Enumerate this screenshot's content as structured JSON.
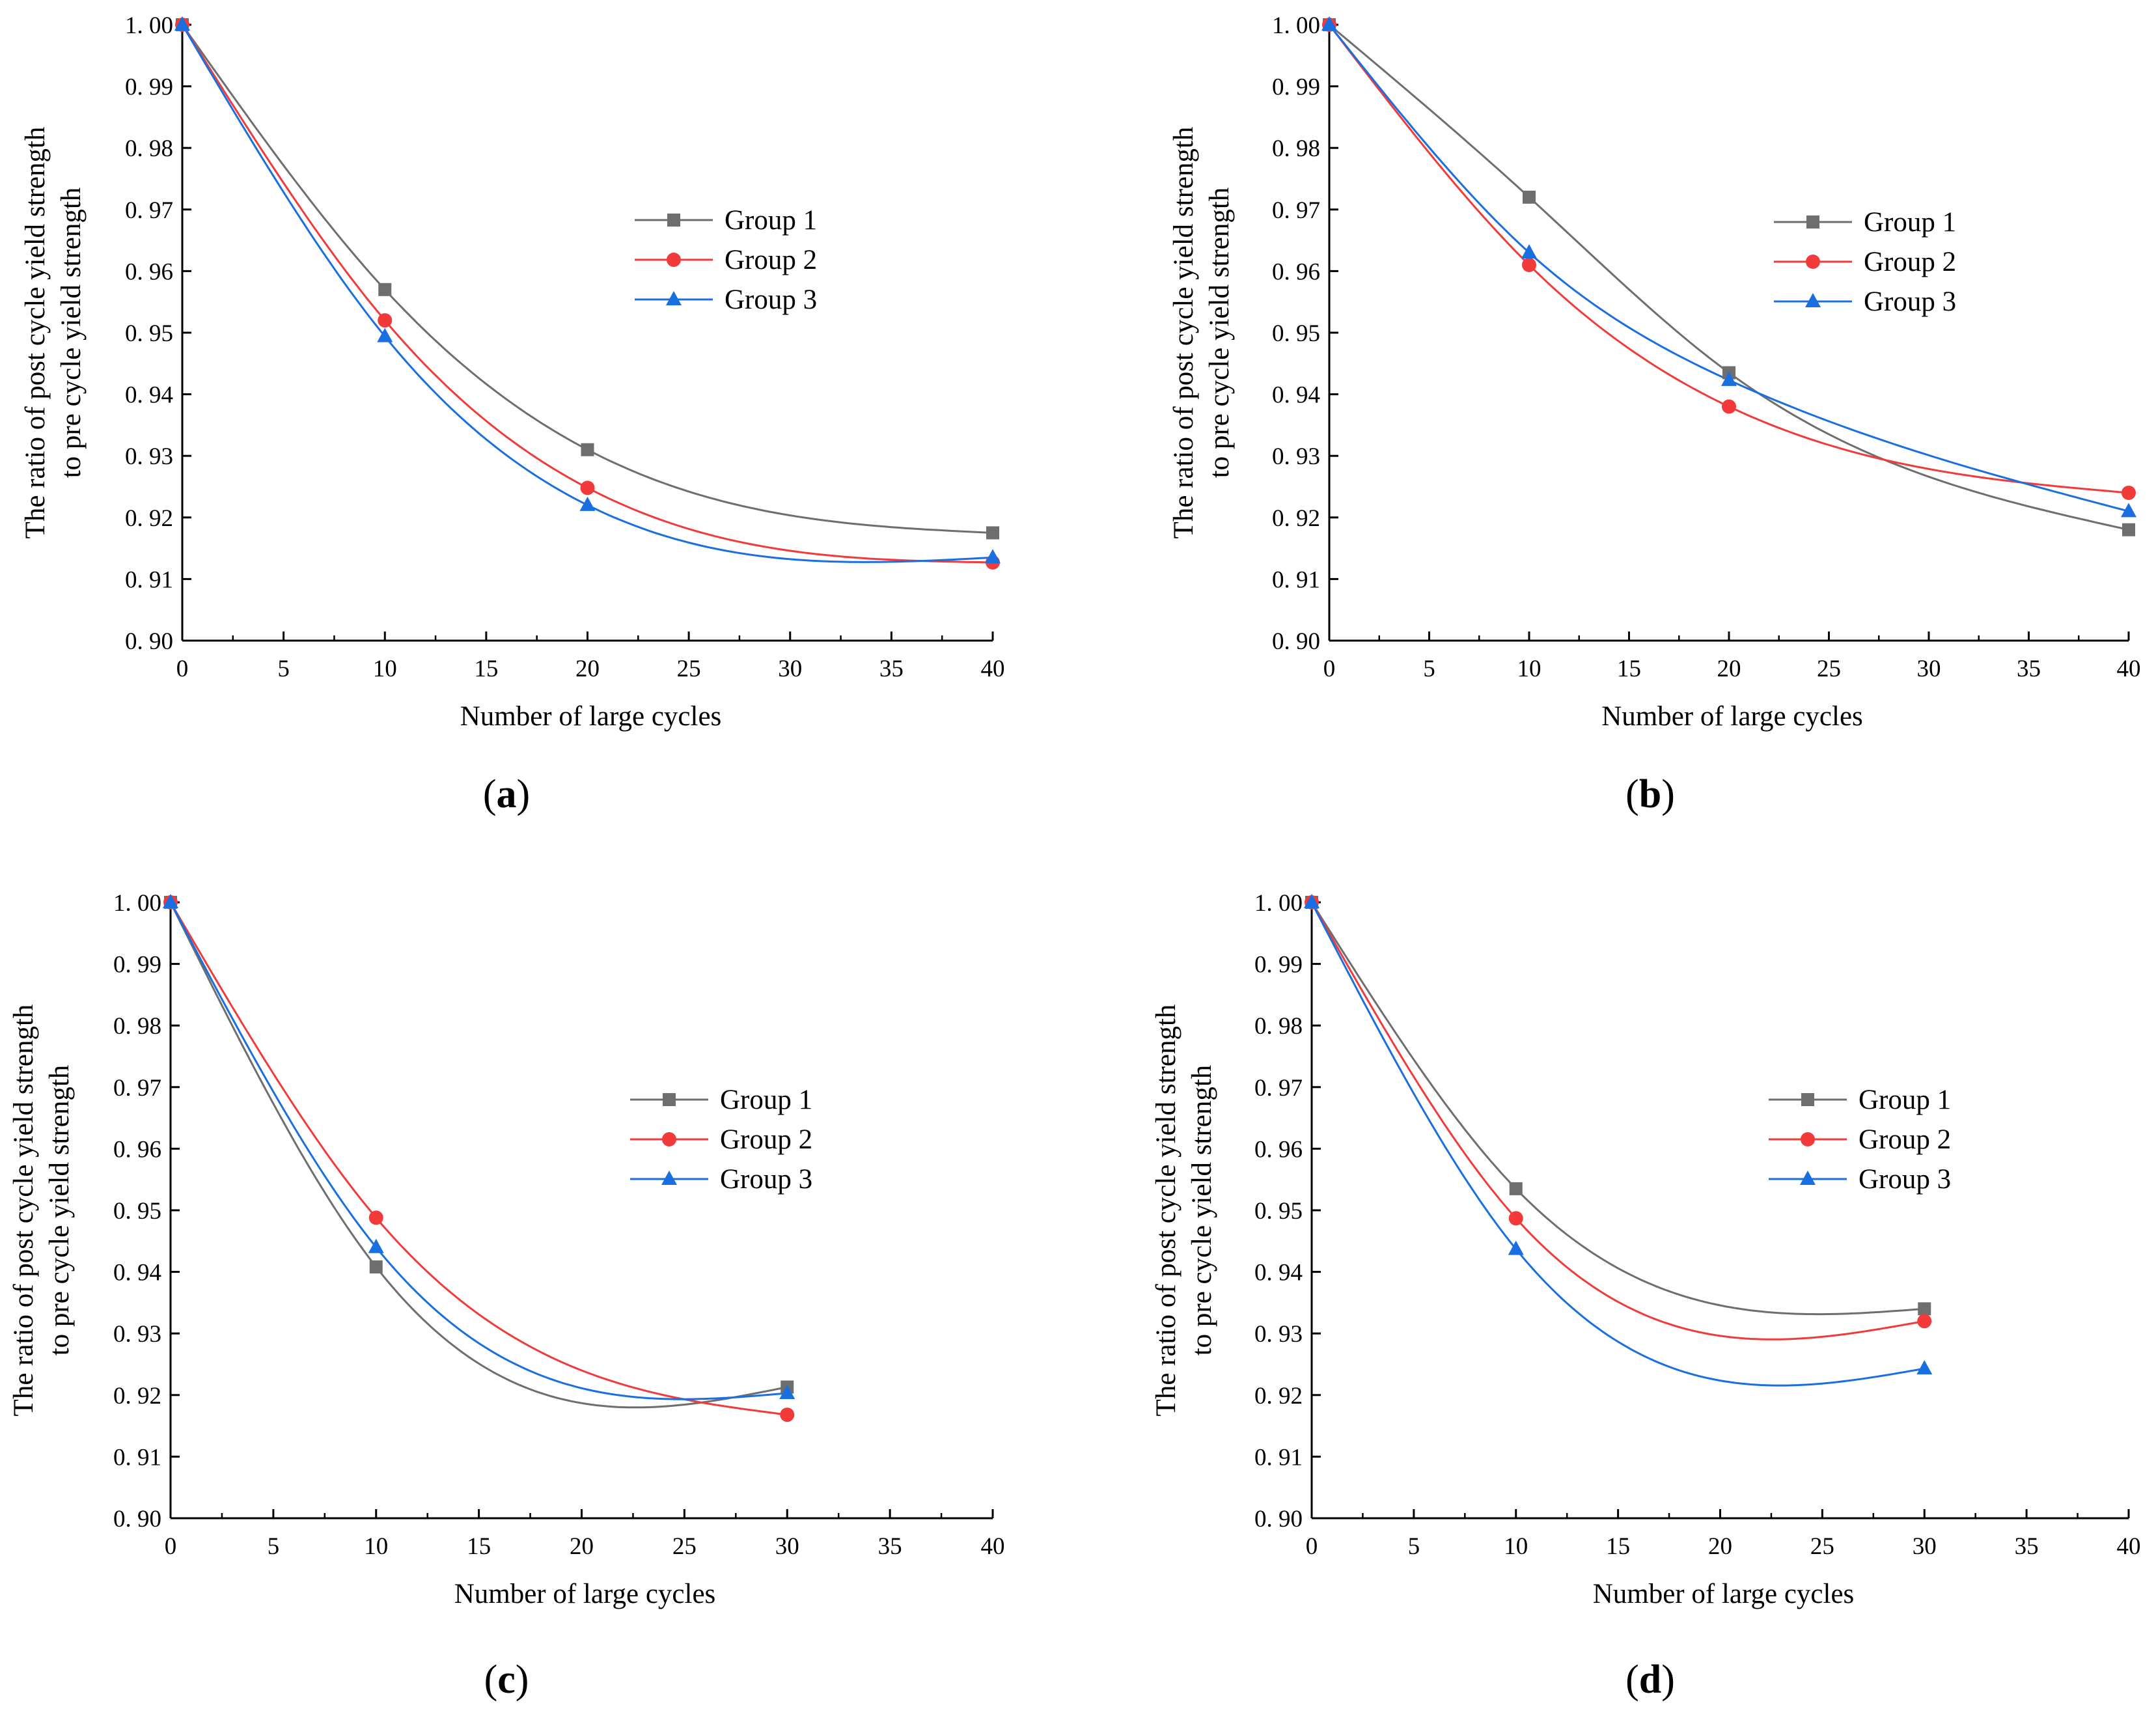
{
  "chart_data": [
    {
      "type": "line",
      "panel_label": "a",
      "xlabel": "Number of large cycles",
      "ylabel_line1": "The ratio of post cycle yield strength",
      "ylabel_line2": "to pre cycle yield strength",
      "xlim": [
        0,
        40
      ],
      "ylim": [
        0.9,
        1.0
      ],
      "xticks": [
        0,
        5,
        10,
        15,
        20,
        25,
        30,
        35,
        40
      ],
      "xtick_labels": [
        "0",
        "5",
        "10",
        "15",
        "20",
        "25",
        "30",
        "35",
        "40"
      ],
      "yticks": [
        0.9,
        0.91,
        0.92,
        0.93,
        0.94,
        0.95,
        0.96,
        0.97,
        0.98,
        0.99,
        1.0
      ],
      "ytick_labels": [
        "0. 90",
        "0. 91",
        "0. 92",
        "0. 93",
        "0. 94",
        "0. 95",
        "0. 96",
        "0. 97",
        "0. 98",
        "0. 99",
        "1. 00"
      ],
      "legend_position": "upper-middle-right",
      "series": [
        {
          "name": "Group 1",
          "x": [
            0,
            10,
            20,
            40
          ],
          "values": [
            1.0,
            0.957,
            0.931,
            0.9175
          ]
        },
        {
          "name": "Group 2",
          "x": [
            0,
            10,
            20,
            40
          ],
          "values": [
            1.0,
            0.952,
            0.9248,
            0.9127
          ]
        },
        {
          "name": "Group 3",
          "x": [
            0,
            10,
            20,
            40
          ],
          "values": [
            1.0,
            0.9494,
            0.922,
            0.9135
          ]
        }
      ]
    },
    {
      "type": "line",
      "panel_label": "b",
      "xlabel": "Number of large cycles",
      "ylabel_line1": "The ratio of post cycle yield strength",
      "ylabel_line2": "to pre cycle yield strength",
      "xlim": [
        0,
        40
      ],
      "ylim": [
        0.9,
        1.0
      ],
      "xticks": [
        0,
        5,
        10,
        15,
        20,
        25,
        30,
        35,
        40
      ],
      "xtick_labels": [
        "0",
        "5",
        "10",
        "15",
        "20",
        "25",
        "30",
        "35",
        "40"
      ],
      "yticks": [
        0.9,
        0.91,
        0.92,
        0.93,
        0.94,
        0.95,
        0.96,
        0.97,
        0.98,
        0.99,
        1.0
      ],
      "ytick_labels": [
        "0. 90",
        "0. 91",
        "0. 92",
        "0. 93",
        "0. 94",
        "0. 95",
        "0. 96",
        "0. 97",
        "0. 98",
        "0. 99",
        "1. 00"
      ],
      "legend_position": "upper-middle-right",
      "series": [
        {
          "name": "Group 1",
          "x": [
            0,
            10,
            20,
            40
          ],
          "values": [
            1.0,
            0.972,
            0.9435,
            0.918
          ]
        },
        {
          "name": "Group 2",
          "x": [
            0,
            10,
            20,
            40
          ],
          "values": [
            1.0,
            0.961,
            0.938,
            0.924
          ]
        },
        {
          "name": "Group 3",
          "x": [
            0,
            10,
            20,
            40
          ],
          "values": [
            1.0,
            0.963,
            0.9423,
            0.921
          ]
        }
      ]
    },
    {
      "type": "line",
      "panel_label": "c",
      "xlabel": "Number of large cycles",
      "ylabel_line1": "The ratio of post cycle yield strength",
      "ylabel_line2": "to pre cycle yield strength",
      "xlim": [
        0,
        40
      ],
      "ylim": [
        0.9,
        1.0
      ],
      "xticks": [
        0,
        5,
        10,
        15,
        20,
        25,
        30,
        35,
        40
      ],
      "xtick_labels": [
        "0",
        "5",
        "10",
        "15",
        "20",
        "25",
        "30",
        "35",
        "40"
      ],
      "yticks": [
        0.9,
        0.91,
        0.92,
        0.93,
        0.94,
        0.95,
        0.96,
        0.97,
        0.98,
        0.99,
        1.0
      ],
      "ytick_labels": [
        "0. 90",
        "0. 91",
        "0. 92",
        "0. 93",
        "0. 94",
        "0. 95",
        "0. 96",
        "0. 97",
        "0. 98",
        "0. 99",
        "1. 00"
      ],
      "legend_position": "upper-middle-right",
      "series": [
        {
          "name": "Group 1",
          "x": [
            0,
            10,
            30
          ],
          "values": [
            1.0,
            0.9408,
            0.9213
          ]
        },
        {
          "name": "Group 2",
          "x": [
            0,
            10,
            30
          ],
          "values": [
            1.0,
            0.9488,
            0.9168
          ]
        },
        {
          "name": "Group 3",
          "x": [
            0,
            10,
            30
          ],
          "values": [
            1.0,
            0.944,
            0.9203
          ]
        }
      ]
    },
    {
      "type": "line",
      "panel_label": "d",
      "xlabel": "Number of large cycles",
      "ylabel_line1": "The ratio of post cycle yield strength",
      "ylabel_line2": "to pre cycle yield strength",
      "xlim": [
        0,
        40
      ],
      "ylim": [
        0.9,
        1.0
      ],
      "xticks": [
        0,
        5,
        10,
        15,
        20,
        25,
        30,
        35,
        40
      ],
      "xtick_labels": [
        "0",
        "5",
        "10",
        "15",
        "20",
        "25",
        "30",
        "35",
        "40"
      ],
      "yticks": [
        0.9,
        0.91,
        0.92,
        0.93,
        0.94,
        0.95,
        0.96,
        0.97,
        0.98,
        0.99,
        1.0
      ],
      "ytick_labels": [
        "0. 90",
        "0. 91",
        "0. 92",
        "0. 93",
        "0. 94",
        "0. 95",
        "0. 96",
        "0. 97",
        "0. 98",
        "0. 99",
        "1. 00"
      ],
      "legend_position": "upper-middle-right",
      "series": [
        {
          "name": "Group 1",
          "x": [
            0,
            10,
            30
          ],
          "values": [
            1.0,
            0.9535,
            0.934
          ]
        },
        {
          "name": "Group 2",
          "x": [
            0,
            10,
            30
          ],
          "values": [
            1.0,
            0.9487,
            0.932
          ]
        },
        {
          "name": "Group 3",
          "x": [
            0,
            10,
            30
          ],
          "values": [
            1.0,
            0.9437,
            0.9243
          ]
        }
      ]
    }
  ],
  "series_styles": [
    {
      "color": "#6e6e6e",
      "marker": "square-marker"
    },
    {
      "color": "#f23a3a",
      "marker": "circle-marker"
    },
    {
      "color": "#1a6fe0",
      "marker": "triangle-marker"
    }
  ]
}
